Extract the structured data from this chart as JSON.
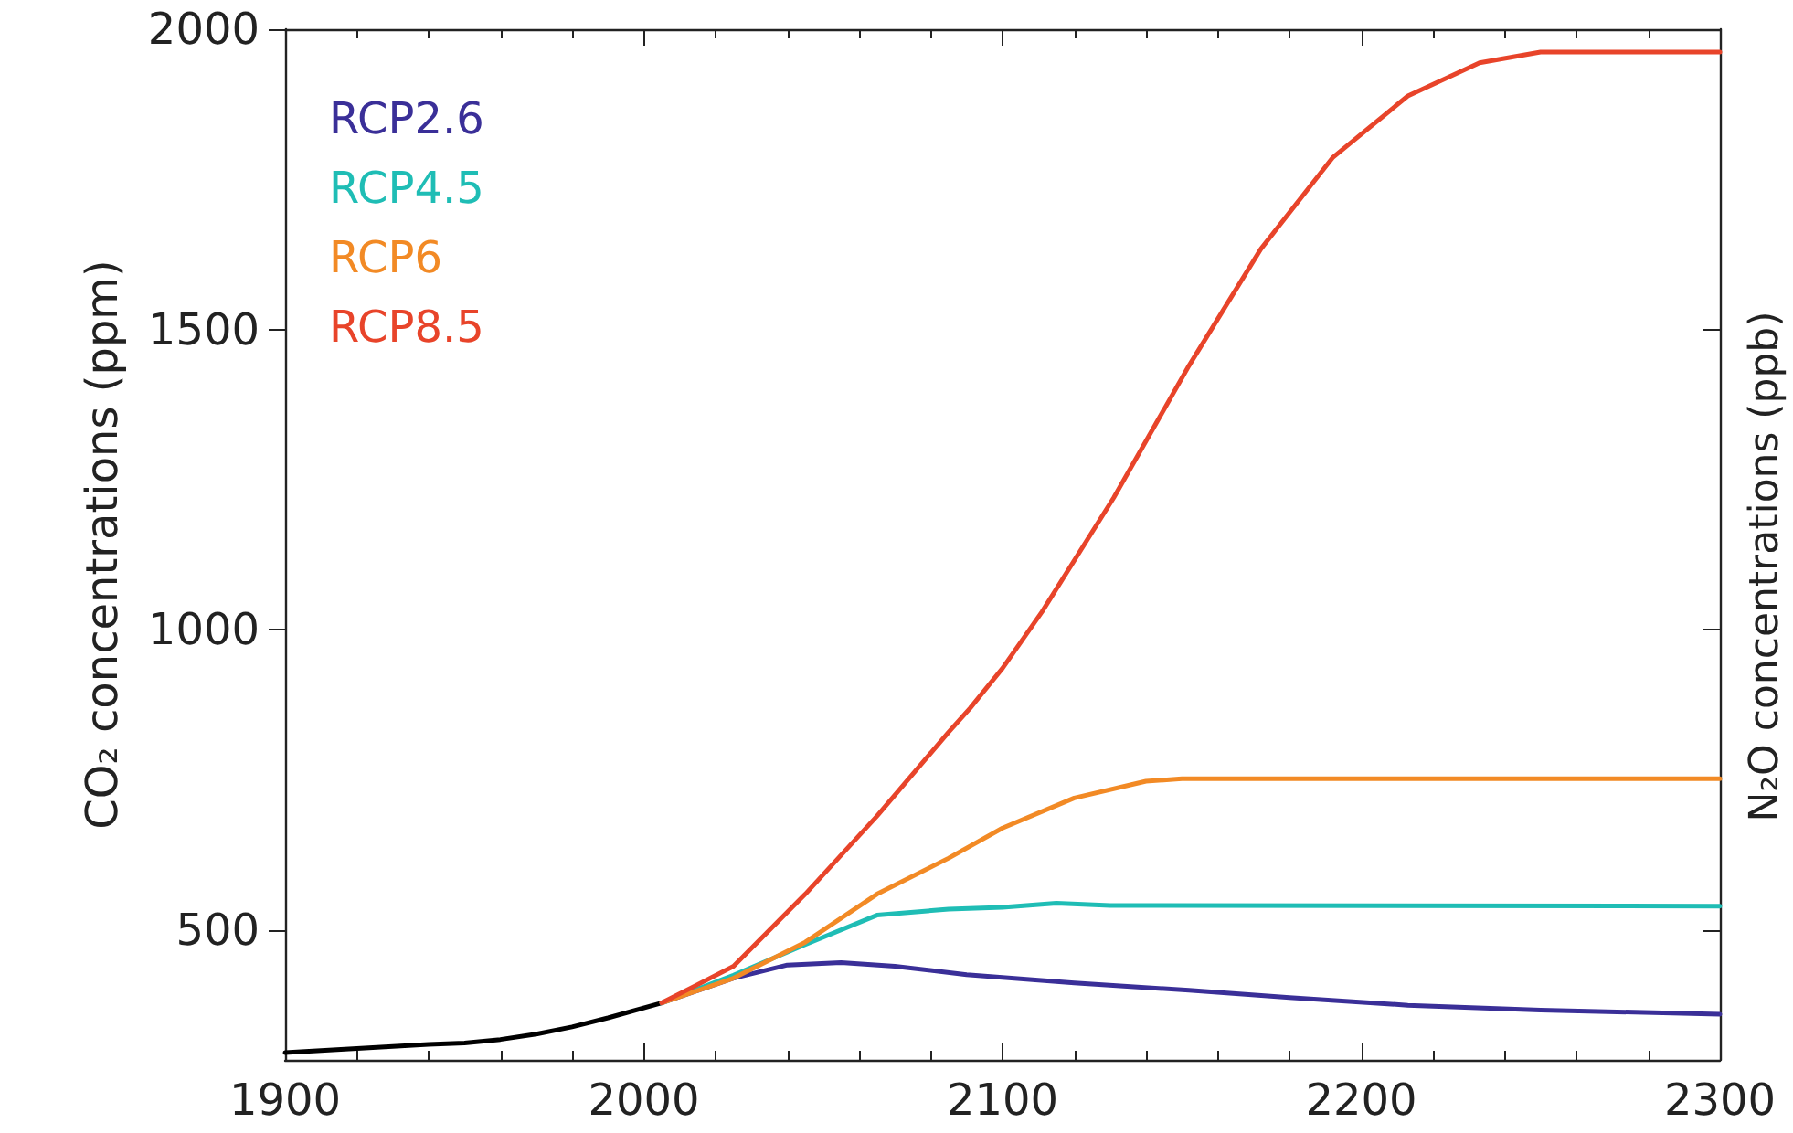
{
  "chart_data": {
    "type": "line",
    "ylabel": "CO₂ concentrations (ppm)",
    "annotations": [
      "N₂O concentrations (ppb)"
    ],
    "xlim": [
      1900,
      2300
    ],
    "xticks": [
      1900,
      2000,
      2100,
      2200,
      2300
    ],
    "ylim": [
      284,
      2000
    ],
    "yticks": [
      500,
      1000,
      1500,
      2000
    ],
    "legend": "top left",
    "marker": "none",
    "line_style": "solid",
    "grid": false,
    "series": [
      {
        "color": "#000000",
        "x": [
          1900,
          1920,
          1940,
          1950,
          1960,
          1970,
          1980,
          1990,
          2005
        ],
        "values": [
          296,
          303,
          310,
          312,
          318,
          327,
          339,
          354,
          379
        ]
      },
      {
        "name": "RCP2.6",
        "color": "#3a2f98",
        "x": [
          2005,
          2025,
          2040,
          2055,
          2070,
          2090,
          2120,
          2152,
          2180,
          2213,
          2250,
          2300
        ],
        "values": [
          379,
          420,
          442,
          446,
          440,
          426,
          412,
          400,
          388,
          375,
          367,
          360
        ]
      },
      {
        "name": "RCP4.5",
        "color": "#1fbdb5",
        "x": [
          2005,
          2025,
          2045,
          2065,
          2085,
          2100,
          2115,
          2130,
          2300
        ],
        "values": [
          379,
          425,
          476,
          525,
          535,
          538,
          545,
          541,
          540
        ]
      },
      {
        "name": "RCP6",
        "color": "#f28a25",
        "x": [
          2005,
          2025,
          2045,
          2065,
          2085,
          2100,
          2120,
          2140,
          2150,
          2300
        ],
        "values": [
          379,
          420,
          480,
          560,
          620,
          670,
          720,
          748,
          752,
          752
        ]
      },
      {
        "name": "RCP8.5",
        "color": "#e8442a",
        "x": [
          2005,
          2025,
          2045,
          2065,
          2085,
          2091,
          2100,
          2111,
          2131,
          2152,
          2172,
          2192,
          2213,
          2233,
          2250,
          2300
        ],
        "values": [
          379,
          440,
          560,
          690,
          830,
          870,
          936,
          1030,
          1220,
          1440,
          1634,
          1786,
          1889,
          1944,
          1962,
          1962
        ]
      }
    ]
  }
}
